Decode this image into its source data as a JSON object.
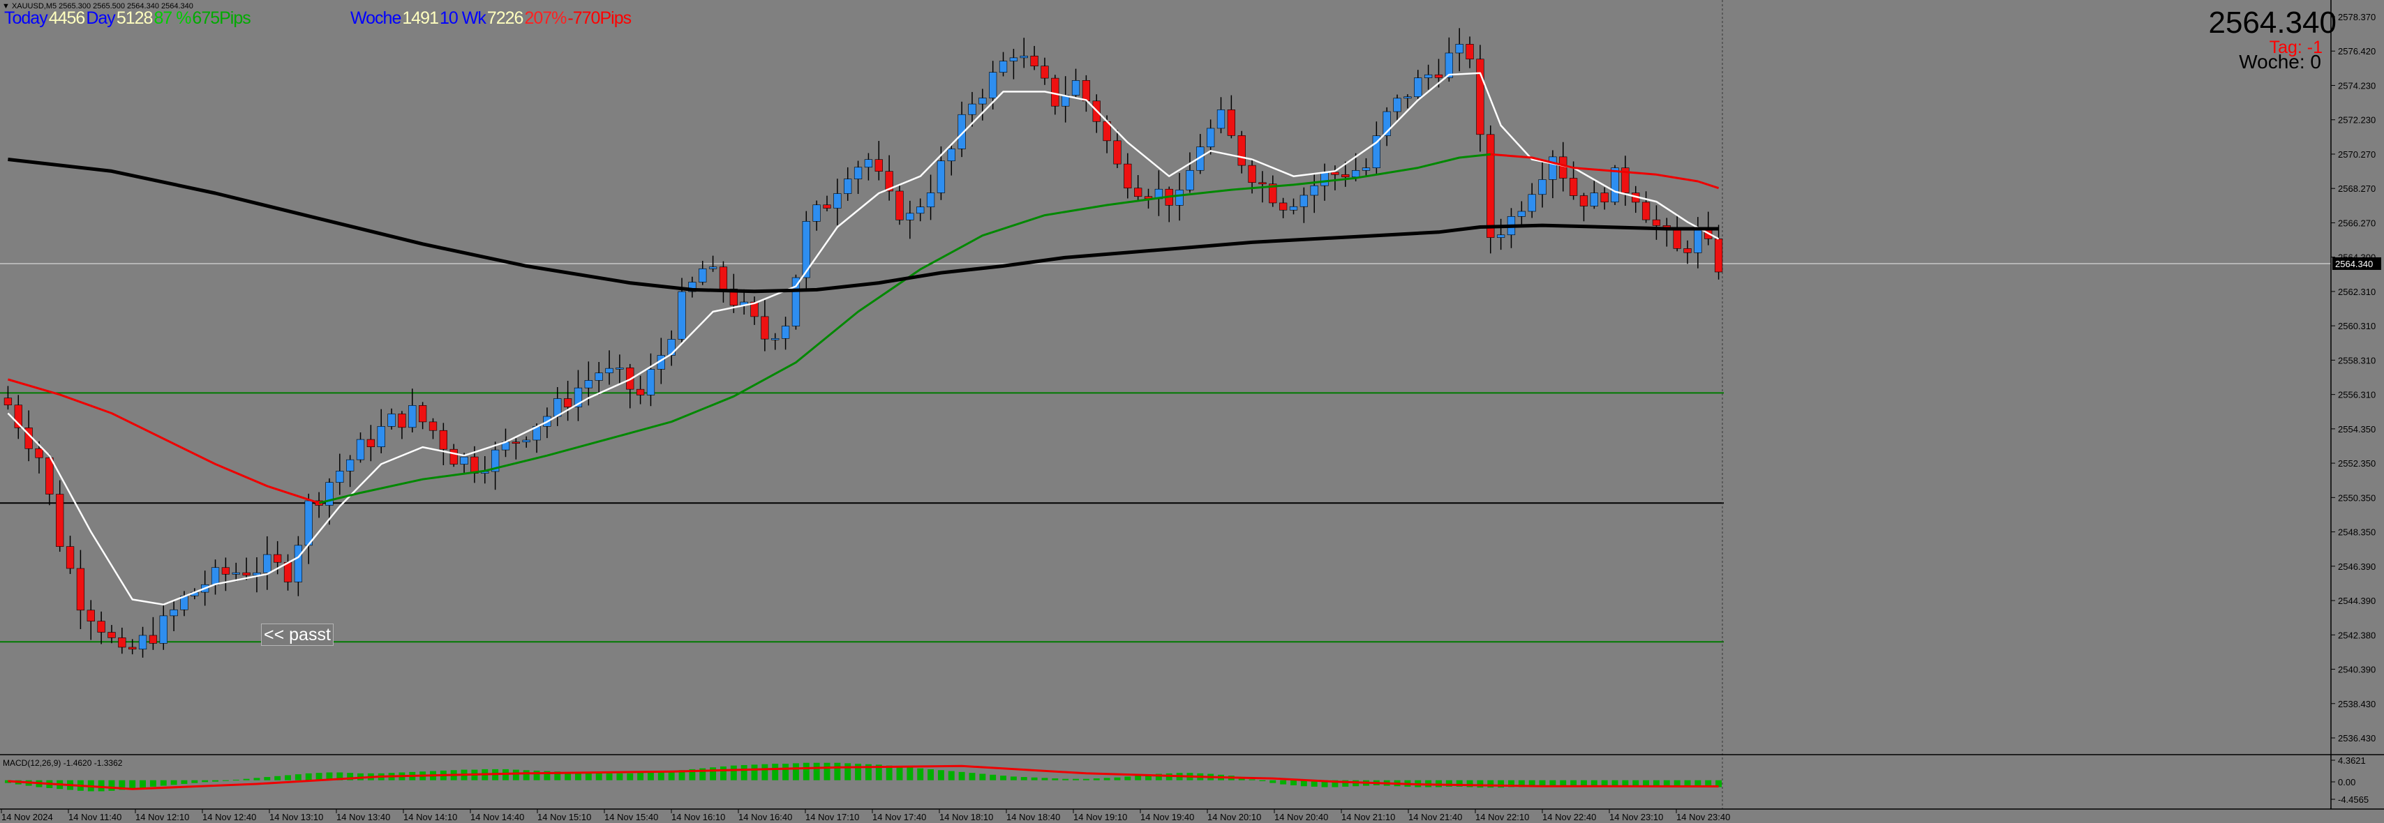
{
  "header": {
    "symbol_line": "▼ XAUUSD,M5 2565.300 2565.500 2564.340 2564.340",
    "stats_today": [
      {
        "text": "Today",
        "color": "#0000ff"
      },
      {
        "text": "4456",
        "color": "#ffffbf"
      },
      {
        "text": "Day",
        "color": "#0000ff"
      },
      {
        "text": "5128",
        "color": "#ffffbf"
      },
      {
        "text": "87 %",
        "color": "#00cc00"
      },
      {
        "text": "675Pips",
        "color": "#00aa00"
      }
    ],
    "stats_week": [
      {
        "text": "Woche",
        "color": "#0000ff"
      },
      {
        "text": "1491",
        "color": "#ffffbf"
      },
      {
        "text": "10 Wk",
        "color": "#0000ff"
      },
      {
        "text": "7226",
        "color": "#ffffbf"
      },
      {
        "text": "207%",
        "color": "#ff2020"
      },
      {
        "text": "-770Pips",
        "color": "#ff0000"
      }
    ],
    "price_big": "2564.340",
    "tag_label": "Tag: -1",
    "woche_label": "Woche:  0",
    "passt_label": "<< passt"
  },
  "chart_data": {
    "type": "candlestick",
    "symbol": "XAUUSD",
    "timeframe": "M5",
    "ohlc_header": {
      "open": 2565.3,
      "high": 2565.5,
      "low": 2564.34,
      "close": 2564.34
    },
    "current_price": 2564.34,
    "current_price_label": "2564.340",
    "ylim": [
      2535.5,
      2579.5
    ],
    "y_ticks": [
      "2578.370",
      "2576.420",
      "2574.230",
      "2572.230",
      "2570.270",
      "2568.270",
      "2566.270",
      "2564.300",
      "2562.310",
      "2560.310",
      "2558.310",
      "2556.310",
      "2554.350",
      "2552.350",
      "2550.350",
      "2548.350",
      "2546.390",
      "2544.390",
      "2542.380",
      "2540.390",
      "2538.430",
      "2536.430"
    ],
    "x_labels": [
      "14 Nov 2024",
      "14 Nov 11:40",
      "14 Nov 12:10",
      "14 Nov 12:40",
      "14 Nov 13:10",
      "14 Nov 13:40",
      "14 Nov 14:10",
      "14 Nov 14:40",
      "14 Nov 15:10",
      "14 Nov 15:40",
      "14 Nov 16:10",
      "14 Nov 16:40",
      "14 Nov 17:10",
      "14 Nov 17:40",
      "14 Nov 18:10",
      "14 Nov 18:40",
      "14 Nov 19:10",
      "14 Nov 19:40",
      "14 Nov 20:10",
      "14 Nov 20:40",
      "14 Nov 21:10",
      "14 Nov 21:40",
      "14 Nov 22:10",
      "14 Nov 22:40",
      "14 Nov 23:10",
      "14 Nov 23:40"
    ],
    "close_path": [
      [
        0,
        2556
      ],
      [
        3,
        2553
      ],
      [
        5,
        2548
      ],
      [
        7,
        2544.5
      ],
      [
        9,
        2543
      ],
      [
        11,
        2541
      ],
      [
        13,
        2542
      ],
      [
        15,
        2543
      ],
      [
        17,
        2544.5
      ],
      [
        19,
        2545.5
      ],
      [
        21,
        2546
      ],
      [
        23,
        2546.3
      ],
      [
        25,
        2546.5
      ],
      [
        27,
        2546.2
      ],
      [
        29,
        2550
      ],
      [
        31,
        2551.5
      ],
      [
        33,
        2552.8
      ],
      [
        35,
        2554
      ],
      [
        37,
        2555
      ],
      [
        39,
        2555.5
      ],
      [
        41,
        2554.5
      ],
      [
        43,
        2553
      ],
      [
        45,
        2552.5
      ],
      [
        47,
        2553
      ],
      [
        49,
        2554
      ],
      [
        51,
        2555
      ],
      [
        53,
        2555.8
      ],
      [
        55,
        2557
      ],
      [
        57,
        2558
      ],
      [
        59,
        2557.5
      ],
      [
        61,
        2556.5
      ],
      [
        63,
        2559
      ],
      [
        65,
        2562
      ],
      [
        67,
        2564
      ],
      [
        69,
        2563
      ],
      [
        71,
        2561.5
      ],
      [
        73,
        2560
      ],
      [
        75,
        2561
      ],
      [
        77,
        2566.5
      ],
      [
        79,
        2568
      ],
      [
        81,
        2570
      ],
      [
        83,
        2570.5
      ],
      [
        85,
        2568
      ],
      [
        87,
        2567
      ],
      [
        89,
        2569
      ],
      [
        91,
        2571
      ],
      [
        93,
        2574
      ],
      [
        95,
        2575.3
      ],
      [
        97,
        2577
      ],
      [
        99,
        2575.5
      ],
      [
        101,
        2574
      ],
      [
        103,
        2575
      ],
      [
        105,
        2573
      ],
      [
        107,
        2570
      ],
      [
        109,
        2569
      ],
      [
        111,
        2568.5
      ],
      [
        113,
        2568
      ],
      [
        115,
        2571.5
      ],
      [
        117,
        2572.8
      ],
      [
        119,
        2570.5
      ],
      [
        121,
        2569
      ],
      [
        123,
        2568
      ],
      [
        125,
        2568.5
      ],
      [
        127,
        2569.5
      ],
      [
        129,
        2569.8
      ],
      [
        131,
        2570
      ],
      [
        133,
        2573
      ],
      [
        135,
        2574.5
      ],
      [
        137,
        2575.5
      ],
      [
        139,
        2576.5
      ],
      [
        141,
        2576.8
      ],
      [
        143,
        2566
      ],
      [
        145,
        2567
      ],
      [
        147,
        2569
      ],
      [
        149,
        2571
      ],
      [
        151,
        2568.5
      ],
      [
        153,
        2568
      ],
      [
        155,
        2569.3
      ],
      [
        157,
        2568.5
      ],
      [
        159,
        2566.5
      ],
      [
        161,
        2565
      ],
      [
        163,
        2566
      ],
      [
        165,
        2564.3
      ]
    ],
    "bars_total": 166,
    "series": [
      {
        "name": "",
        "color": "#ffffff",
        "points": [
          [
            0,
            2555.5
          ],
          [
            4,
            2553
          ],
          [
            8,
            2548.5
          ],
          [
            12,
            2544.5
          ],
          [
            15,
            2544.2
          ],
          [
            20,
            2545.4
          ],
          [
            25,
            2546
          ],
          [
            28,
            2547
          ],
          [
            32,
            2550
          ],
          [
            36,
            2552.5
          ],
          [
            40,
            2553.5
          ],
          [
            44,
            2553
          ],
          [
            48,
            2553.8
          ],
          [
            52,
            2555
          ],
          [
            56,
            2556.4
          ],
          [
            60,
            2557.5
          ],
          [
            64,
            2559
          ],
          [
            68,
            2561.5
          ],
          [
            72,
            2562
          ],
          [
            76,
            2563
          ],
          [
            80,
            2566.5
          ],
          [
            84,
            2568.5
          ],
          [
            88,
            2569.5
          ],
          [
            92,
            2572
          ],
          [
            96,
            2574.5
          ],
          [
            100,
            2574.5
          ],
          [
            104,
            2574
          ],
          [
            108,
            2571.5
          ],
          [
            112,
            2569.5
          ],
          [
            116,
            2571
          ],
          [
            120,
            2570.5
          ],
          [
            124,
            2569.5
          ],
          [
            128,
            2569.8
          ],
          [
            132,
            2571.5
          ],
          [
            136,
            2574
          ],
          [
            139,
            2575.5
          ],
          [
            142,
            2575.6
          ],
          [
            144,
            2572.5
          ],
          [
            147,
            2570.5
          ],
          [
            151,
            2570
          ],
          [
            155,
            2568.6
          ],
          [
            159,
            2568
          ],
          [
            162,
            2566.8
          ],
          [
            165,
            2565.8
          ]
        ]
      },
      {
        "name": "",
        "color": "#008800",
        "points": [
          [
            30,
            2550.2
          ],
          [
            34,
            2550.8
          ],
          [
            40,
            2551.6
          ],
          [
            46,
            2552.1
          ],
          [
            52,
            2553
          ],
          [
            58,
            2554
          ],
          [
            64,
            2555
          ],
          [
            70,
            2556.5
          ],
          [
            76,
            2558.5
          ],
          [
            82,
            2561.5
          ],
          [
            88,
            2564
          ],
          [
            94,
            2566
          ],
          [
            100,
            2567.2
          ],
          [
            106,
            2567.8
          ],
          [
            112,
            2568.3
          ],
          [
            118,
            2568.7
          ],
          [
            124,
            2569
          ],
          [
            130,
            2569.4
          ],
          [
            136,
            2570
          ],
          [
            140,
            2570.6
          ],
          [
            143,
            2570.8
          ]
        ]
      },
      {
        "name": "",
        "color": "#ee0000",
        "points": [
          [
            0,
            2557.5
          ],
          [
            5,
            2556.6
          ],
          [
            10,
            2555.5
          ],
          [
            15,
            2554
          ],
          [
            20,
            2552.5
          ],
          [
            25,
            2551.2
          ],
          [
            30,
            2550.2
          ],
          [
            143,
            2570.8
          ],
          [
            147,
            2570.6
          ],
          [
            151,
            2570
          ],
          [
            155,
            2569.8
          ],
          [
            159,
            2569.6
          ],
          [
            163,
            2569.2
          ],
          [
            165,
            2568.8
          ]
        ]
      },
      {
        "name": "",
        "color": "#000000",
        "points": [
          [
            0,
            2570.5
          ],
          [
            10,
            2569.8
          ],
          [
            20,
            2568.5
          ],
          [
            30,
            2567
          ],
          [
            40,
            2565.5
          ],
          [
            50,
            2564.2
          ],
          [
            60,
            2563.2
          ],
          [
            66,
            2562.8
          ],
          [
            72,
            2562.7
          ],
          [
            78,
            2562.8
          ],
          [
            84,
            2563.2
          ],
          [
            90,
            2563.8
          ],
          [
            96,
            2564.2
          ],
          [
            102,
            2564.7
          ],
          [
            108,
            2565
          ],
          [
            114,
            2565.3
          ],
          [
            120,
            2565.6
          ],
          [
            126,
            2565.8
          ],
          [
            132,
            2566
          ],
          [
            138,
            2566.2
          ],
          [
            142,
            2566.5
          ],
          [
            148,
            2566.6
          ],
          [
            154,
            2566.5
          ],
          [
            160,
            2566.4
          ],
          [
            165,
            2566.4
          ]
        ]
      }
    ],
    "hlines": [
      {
        "y": 2556.7,
        "color": "#007a00"
      },
      {
        "y": 2550.2,
        "color": "#000000"
      },
      {
        "y": 2542.0,
        "color": "#007a00"
      }
    ],
    "macd": {
      "label": "MACD(12,26,9) -1.4620 -1.3362",
      "y_ticks": [
        "4.3621",
        "0.00",
        "-4.4565"
      ],
      "ylim": [
        -4.4565,
        4.3621
      ],
      "hist": [
        -0.6,
        -0.9,
        -1.2,
        -1.5,
        -1.7,
        -1.9,
        -2.1,
        -2.3,
        -2.4,
        -2.4,
        -2.3,
        -2.1,
        -1.9,
        -1.7,
        -1.4,
        -1.2,
        -1,
        -0.8,
        -0.6,
        -0.4,
        -0.3,
        -0.1,
        0.1,
        0.3,
        0.5,
        0.7,
        0.9,
        1.1,
        1.3,
        1.5,
        1.6,
        1.7,
        1.7,
        1.6,
        1.5,
        1.5,
        1.5,
        1.6,
        1.7,
        1.8,
        1.9,
        2,
        2.1,
        2.2,
        2.3,
        2.3,
        2.4,
        2.4,
        2.4,
        2.3,
        2.2,
        2.1,
        2,
        1.9,
        1.8,
        1.7,
        1.6,
        1.5,
        1.5,
        1.5,
        1.5,
        1.6,
        1.7,
        1.8,
        2,
        2.2,
        2.4,
        2.6,
        2.8,
        3,
        3.2,
        3.3,
        3.4,
        3.5,
        3.6,
        3.6,
        3.7,
        3.8,
        3.8,
        3.8,
        3.8,
        3.7,
        3.6,
        3.5,
        3.4,
        3.2,
        3,
        2.8,
        2.6,
        2.4,
        2.2,
        2,
        1.8,
        1.6,
        1.4,
        1.2,
        1,
        0.8,
        0.7,
        0.6,
        0.5,
        0.4,
        0.3,
        0.3,
        0.3,
        0.4,
        0.5,
        0.6,
        0.8,
        1,
        1.2,
        1.4,
        1.5,
        1.6,
        1.6,
        1.5,
        1.4,
        1.2,
        1,
        0.6,
        0.2,
        -0.2,
        -0.6,
        -0.9,
        -1.1,
        -1.3,
        -1.4,
        -1.5,
        -1.5,
        -1.4,
        -1.3,
        -1.2,
        -1.1,
        -1.2,
        -1.3,
        -1.4,
        -1.5,
        -1.5,
        -1.5,
        -1.4,
        -1.4,
        -1.5,
        -1.6,
        -1.6,
        -1.6,
        -1.5,
        -1.5,
        -1.5,
        -1.4,
        -1.4,
        -1.4,
        -1.5,
        -1.5,
        -1.5,
        -1.4,
        -1.3,
        -1.3,
        -1.4,
        -1.4,
        -1.5,
        -1.5,
        -1.5,
        -1.4,
        -1.4,
        -1.5,
        -1.5
      ],
      "signal": [
        [
          0,
          -0.2
        ],
        [
          12,
          -1.9
        ],
        [
          24,
          -0.8
        ],
        [
          36,
          0.8
        ],
        [
          50,
          1.5
        ],
        [
          64,
          1.9
        ],
        [
          80,
          2.8
        ],
        [
          92,
          3.1
        ],
        [
          104,
          1.5
        ],
        [
          116,
          0.7
        ],
        [
          122,
          0.4
        ],
        [
          128,
          -0.3
        ],
        [
          136,
          -0.9
        ],
        [
          148,
          -1.3
        ],
        [
          165,
          -1.34
        ]
      ],
      "signal_color": "#ee0000",
      "hist_color": "#00b000"
    }
  }
}
